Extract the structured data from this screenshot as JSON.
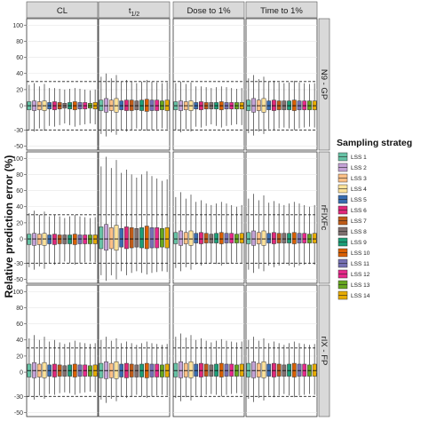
{
  "chart_data": {
    "type": "box",
    "ylabel": "Relative prediction error (%)",
    "ylim": [
      -55,
      108
    ],
    "yticks": [
      -50,
      -30,
      0,
      20,
      40,
      60,
      80,
      100
    ],
    "reference_lines": [
      -30,
      30
    ],
    "columns": [
      "CL",
      "t1/2",
      "Dose to 1%",
      "Time to 1%"
    ],
    "column_labels": {
      "CL": "CL",
      "t1/2": "t",
      "t1/2_sub": "1/2",
      "Dose to 1%": "Dose to 1%",
      "Time to 1%": "Time to 1%"
    },
    "rows": [
      "N9 - GP",
      "rFIXFc",
      "rIX - FP"
    ],
    "legend": {
      "title": "Sampling strateg",
      "entries": [
        "LSS 1",
        "LSS 2",
        "LSS 3",
        "LSS 4",
        "LSS 5",
        "LSS 6",
        "LSS 7",
        "LSS 8",
        "LSS 9",
        "LSS 10",
        "LSS 11",
        "LSS 12",
        "LSS 13",
        "LSS 14"
      ]
    },
    "colors": [
      "#66c2a5",
      "#c4a2d6",
      "#fdc086",
      "#ffe39a",
      "#386cb0",
      "#e0287a",
      "#bf5b17",
      "#7f6f6f",
      "#1b9e77",
      "#d95f02",
      "#7570b3",
      "#e7298a",
      "#66a61e",
      "#e6ab02"
    ],
    "panels": [
      {
        "row": "N9 - GP",
        "column": "CL",
        "q1": [
          -5,
          -6,
          -5,
          -6,
          -4,
          -5,
          -4,
          -3,
          -4,
          -5,
          -4,
          -4,
          -3,
          -4
        ],
        "median": [
          0,
          0,
          0,
          0,
          0,
          0,
          0,
          0,
          0,
          0,
          0,
          0,
          0,
          0
        ],
        "q3": [
          5,
          6,
          5,
          6,
          4,
          5,
          4,
          3,
          4,
          5,
          4,
          4,
          3,
          4
        ],
        "low": [
          -30,
          -32,
          -28,
          -31,
          -25,
          -26,
          -24,
          -22,
          -24,
          -26,
          -24,
          -23,
          -22,
          -23
        ],
        "high": [
          26,
          28,
          24,
          27,
          22,
          22,
          21,
          20,
          21,
          22,
          21,
          20,
          19,
          20
        ]
      },
      {
        "row": "N9 - GP",
        "column": "t1/2",
        "q1": [
          -6,
          -8,
          -6,
          -8,
          -5,
          -6,
          -6,
          -5,
          -6,
          -7,
          -6,
          -6,
          -5,
          -6
        ],
        "median": [
          0,
          0,
          0,
          0,
          0,
          0,
          0,
          0,
          0,
          0,
          0,
          0,
          0,
          0
        ],
        "q3": [
          7,
          9,
          7,
          9,
          6,
          7,
          7,
          6,
          7,
          8,
          7,
          7,
          6,
          7
        ],
        "low": [
          -35,
          -38,
          -33,
          -36,
          -30,
          -32,
          -30,
          -28,
          -30,
          -31,
          -30,
          -29,
          -28,
          -29
        ],
        "high": [
          36,
          40,
          34,
          38,
          30,
          32,
          30,
          28,
          30,
          32,
          30,
          29,
          28,
          29
        ]
      },
      {
        "row": "N9 - GP",
        "column": "Dose to 1%",
        "q1": [
          -5,
          -6,
          -5,
          -6,
          -4,
          -5,
          -4,
          -4,
          -4,
          -5,
          -4,
          -4,
          -4,
          -4
        ],
        "median": [
          0,
          0,
          0,
          0,
          0,
          0,
          0,
          0,
          0,
          0,
          0,
          0,
          0,
          0
        ],
        "q3": [
          5,
          6,
          5,
          6,
          4,
          5,
          4,
          4,
          4,
          5,
          4,
          4,
          4,
          4
        ],
        "low": [
          -30,
          -33,
          -29,
          -32,
          -26,
          -27,
          -25,
          -23,
          -25,
          -27,
          -25,
          -24,
          -23,
          -24
        ],
        "high": [
          28,
          30,
          27,
          29,
          24,
          24,
          23,
          22,
          23,
          24,
          23,
          22,
          21,
          22
        ]
      },
      {
        "row": "N9 - GP",
        "column": "Time to 1%",
        "q1": [
          -6,
          -8,
          -6,
          -8,
          -5,
          -6,
          -5,
          -5,
          -5,
          -6,
          -5,
          -5,
          -5,
          -5
        ],
        "median": [
          0,
          0,
          0,
          0,
          0,
          0,
          0,
          0,
          0,
          0,
          0,
          0,
          0,
          0
        ],
        "q3": [
          7,
          9,
          7,
          9,
          6,
          7,
          6,
          6,
          6,
          7,
          6,
          6,
          6,
          6
        ],
        "low": [
          -34,
          -37,
          -32,
          -35,
          -29,
          -30,
          -28,
          -27,
          -28,
          -30,
          -28,
          -27,
          -26,
          -27
        ],
        "high": [
          34,
          38,
          33,
          36,
          30,
          31,
          29,
          28,
          29,
          31,
          29,
          28,
          27,
          28
        ]
      },
      {
        "row": "rFIXFc",
        "column": "CL",
        "q1": [
          -7,
          -8,
          -7,
          -8,
          -6,
          -7,
          -6,
          -6,
          -6,
          -7,
          -6,
          -6,
          -6,
          -6
        ],
        "median": [
          0,
          0,
          0,
          0,
          0,
          0,
          0,
          0,
          0,
          0,
          0,
          0,
          0,
          0
        ],
        "q3": [
          6,
          7,
          6,
          7,
          5,
          6,
          5,
          5,
          5,
          6,
          5,
          5,
          5,
          5
        ],
        "low": [
          -35,
          -38,
          -34,
          -37,
          -30,
          -32,
          -30,
          -28,
          -30,
          -32,
          -30,
          -29,
          -28,
          -29
        ],
        "high": [
          32,
          35,
          30,
          34,
          28,
          30,
          28,
          26,
          28,
          30,
          28,
          27,
          26,
          27
        ]
      },
      {
        "row": "rFIXFc",
        "column": "t1/2",
        "q1": [
          -12,
          -14,
          -12,
          -14,
          -10,
          -12,
          -11,
          -10,
          -11,
          -12,
          -11,
          -11,
          -10,
          -11
        ],
        "median": [
          0,
          0,
          0,
          0,
          0,
          0,
          0,
          0,
          0,
          0,
          0,
          0,
          0,
          0
        ],
        "q3": [
          15,
          18,
          14,
          17,
          13,
          15,
          14,
          13,
          14,
          16,
          14,
          14,
          13,
          14
        ],
        "low": [
          -45,
          -52,
          -45,
          -50,
          -40,
          -45,
          -42,
          -40,
          -42,
          -44,
          -42,
          -41,
          -40,
          -41
        ],
        "high": [
          90,
          102,
          88,
          98,
          82,
          86,
          80,
          76,
          80,
          84,
          78,
          75,
          72,
          74
        ]
      },
      {
        "row": "rFIXFc",
        "column": "Dose to 1%",
        "q1": [
          -6,
          -8,
          -6,
          -8,
          -5,
          -6,
          -5,
          -5,
          -5,
          -6,
          -5,
          -5,
          -5,
          -5
        ],
        "median": [
          0,
          0,
          0,
          0,
          0,
          0,
          0,
          0,
          0,
          0,
          0,
          0,
          0,
          0
        ],
        "q3": [
          8,
          10,
          8,
          10,
          7,
          8,
          7,
          6,
          7,
          8,
          7,
          7,
          6,
          7
        ],
        "low": [
          -36,
          -40,
          -35,
          -38,
          -32,
          -33,
          -31,
          -30,
          -31,
          -33,
          -31,
          -30,
          -29,
          -30
        ],
        "high": [
          52,
          58,
          50,
          55,
          46,
          48,
          44,
          42,
          44,
          46,
          44,
          42,
          40,
          42
        ]
      },
      {
        "row": "rFIXFc",
        "column": "Time to 1%",
        "q1": [
          -6,
          -8,
          -6,
          -8,
          -5,
          -6,
          -5,
          -5,
          -5,
          -6,
          -5,
          -5,
          -5,
          -5
        ],
        "median": [
          0,
          0,
          0,
          0,
          0,
          0,
          0,
          0,
          0,
          0,
          0,
          0,
          0,
          0
        ],
        "q3": [
          8,
          10,
          8,
          10,
          7,
          8,
          7,
          7,
          7,
          8,
          7,
          7,
          6,
          7
        ],
        "low": [
          -38,
          -42,
          -37,
          -40,
          -33,
          -35,
          -33,
          -31,
          -33,
          -35,
          -33,
          -32,
          -31,
          -32
        ],
        "high": [
          50,
          56,
          48,
          54,
          45,
          47,
          44,
          42,
          44,
          46,
          44,
          42,
          40,
          42
        ]
      },
      {
        "row": "rIX - FP",
        "column": "CL",
        "q1": [
          -6,
          -7,
          -6,
          -7,
          -5,
          -6,
          -5,
          -5,
          -5,
          -6,
          -5,
          -5,
          -5,
          -5
        ],
        "median": [
          2,
          2,
          2,
          2,
          2,
          2,
          2,
          2,
          2,
          2,
          2,
          2,
          2,
          2
        ],
        "q3": [
          10,
          12,
          10,
          12,
          9,
          10,
          9,
          8,
          9,
          10,
          9,
          9,
          8,
          9
        ],
        "low": [
          -30,
          -34,
          -29,
          -33,
          -27,
          -28,
          -26,
          -25,
          -26,
          -28,
          -26,
          -25,
          -24,
          -25
        ],
        "high": [
          42,
          46,
          40,
          44,
          38,
          40,
          37,
          35,
          37,
          39,
          37,
          36,
          35,
          36
        ]
      },
      {
        "row": "rIX - FP",
        "column": "t1/2",
        "q1": [
          -7,
          -8,
          -7,
          -8,
          -6,
          -7,
          -6,
          -6,
          -6,
          -7,
          -6,
          -6,
          -6,
          -6
        ],
        "median": [
          2,
          2,
          2,
          2,
          2,
          2,
          2,
          2,
          2,
          2,
          2,
          2,
          2,
          2
        ],
        "q3": [
          11,
          13,
          11,
          13,
          10,
          11,
          10,
          9,
          10,
          11,
          10,
          10,
          9,
          10
        ],
        "low": [
          -34,
          -38,
          -33,
          -36,
          -30,
          -32,
          -30,
          -28,
          -30,
          -32,
          -30,
          -29,
          -28,
          -29
        ],
        "high": [
          40,
          44,
          39,
          42,
          36,
          38,
          36,
          34,
          36,
          38,
          36,
          35,
          34,
          35
        ]
      },
      {
        "row": "rIX - FP",
        "column": "Dose to 1%",
        "q1": [
          -6,
          -7,
          -6,
          -7,
          -5,
          -6,
          -5,
          -5,
          -5,
          -6,
          -5,
          -5,
          -5,
          -5
        ],
        "median": [
          2,
          2,
          2,
          2,
          2,
          2,
          2,
          2,
          2,
          2,
          2,
          2,
          2,
          2
        ],
        "q3": [
          11,
          13,
          11,
          13,
          10,
          11,
          10,
          9,
          10,
          11,
          10,
          10,
          9,
          10
        ],
        "low": [
          -32,
          -36,
          -31,
          -35,
          -29,
          -30,
          -28,
          -27,
          -28,
          -30,
          -28,
          -27,
          -26,
          -27
        ],
        "high": [
          44,
          48,
          43,
          46,
          40,
          42,
          39,
          37,
          39,
          41,
          39,
          38,
          37,
          38
        ]
      },
      {
        "row": "rIX - FP",
        "column": "Time to 1%",
        "q1": [
          -6,
          -7,
          -6,
          -7,
          -5,
          -6,
          -5,
          -5,
          -5,
          -6,
          -5,
          -5,
          -5,
          -5
        ],
        "median": [
          2,
          2,
          2,
          2,
          2,
          2,
          2,
          2,
          2,
          2,
          2,
          2,
          2,
          2
        ],
        "q3": [
          11,
          13,
          11,
          13,
          10,
          11,
          10,
          9,
          10,
          11,
          10,
          10,
          9,
          10
        ],
        "low": [
          -33,
          -37,
          -32,
          -35,
          -29,
          -31,
          -29,
          -27,
          -29,
          -31,
          -29,
          -28,
          -27,
          -28
        ],
        "high": [
          40,
          44,
          39,
          42,
          36,
          38,
          36,
          34,
          36,
          38,
          36,
          35,
          34,
          35
        ]
      }
    ]
  }
}
